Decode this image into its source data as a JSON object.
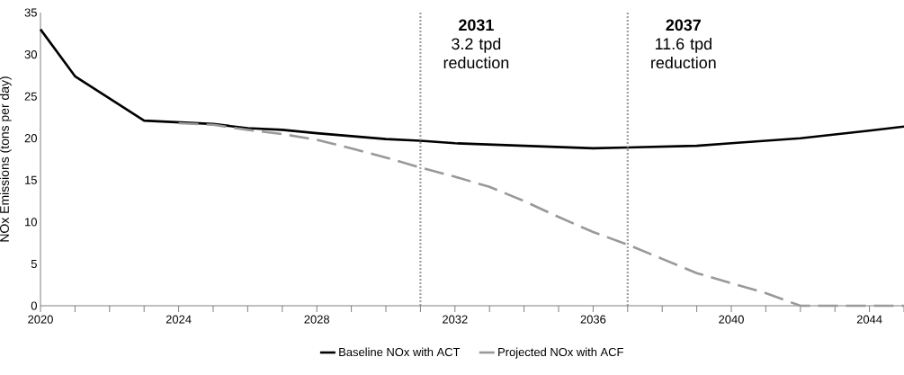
{
  "chart_data": {
    "type": "line",
    "ylabel": "NOx Emissions (tons per day)",
    "x": [
      2020,
      2021,
      2023,
      2025,
      2026,
      2027,
      2028,
      2030,
      2031,
      2032,
      2034,
      2036,
      2037,
      2039,
      2040,
      2042,
      2044,
      2045
    ],
    "series": [
      {
        "name": "Baseline NOx with ACT",
        "color": "#000000",
        "line_style": "solid",
        "values": [
          33.0,
          27.4,
          22.1,
          21.7,
          21.2,
          21.0,
          20.6,
          19.9,
          19.7,
          19.4,
          19.1,
          18.8,
          18.9,
          19.1,
          19.4,
          20.0,
          20.9,
          21.4
        ]
      },
      {
        "name": "Projected NOx with ACF",
        "color": "#999999",
        "line_style": "dashed",
        "x": [
          2024,
          2025,
          2026,
          2027,
          2028,
          2029,
          2030,
          2031,
          2032,
          2033,
          2034,
          2035,
          2036,
          2037,
          2038,
          2039,
          2040,
          2041,
          2042,
          2043,
          2044,
          2045
        ],
        "values": [
          21.8,
          21.6,
          21.0,
          20.5,
          19.8,
          18.8,
          17.7,
          16.5,
          15.4,
          14.2,
          12.5,
          10.6,
          8.8,
          7.3,
          5.6,
          3.9,
          2.7,
          1.5,
          0,
          0,
          0,
          0
        ]
      }
    ],
    "xlim": [
      2020,
      2045
    ],
    "xticks": [
      2020,
      {
        "value": 2021,
        "label": null
      },
      {
        "value": 2022,
        "label": null
      },
      {
        "value": 2023,
        "label": null
      },
      2024,
      {
        "value": 2025,
        "label": null
      },
      {
        "value": 2026,
        "label": null
      },
      {
        "value": 2027,
        "label": null
      },
      2028,
      {
        "value": 2029,
        "label": null
      },
      {
        "value": 2030,
        "label": null
      },
      {
        "value": 2031,
        "label": null
      },
      2032,
      {
        "value": 2033,
        "label": null
      },
      {
        "value": 2034,
        "label": null
      },
      {
        "value": 2035,
        "label": null
      },
      2036,
      {
        "value": 2037,
        "label": null
      },
      {
        "value": 2038,
        "label": null
      },
      {
        "value": 2039,
        "label": null
      },
      2040,
      {
        "value": 2041,
        "label": null
      },
      {
        "value": 2042,
        "label": null
      },
      {
        "value": 2043,
        "label": null
      },
      2044,
      {
        "value": 2045,
        "label": null
      }
    ],
    "ylim": [
      0,
      35
    ],
    "yticks": [
      0,
      5,
      10,
      15,
      20,
      25,
      30,
      35
    ],
    "ref_lines": [
      {
        "axis": "x",
        "value": 2031,
        "label": "**2031** 3.2 tpd reduction",
        "color": "#a0a0a0",
        "line_style": "dotted"
      },
      {
        "axis": "x",
        "value": 2037,
        "label": "**2037** 11.6 tpd reduction",
        "color": "#a0a0a0",
        "line_style": "dotted"
      }
    ],
    "grid": false,
    "legend": "bottom",
    "marker": "none"
  }
}
